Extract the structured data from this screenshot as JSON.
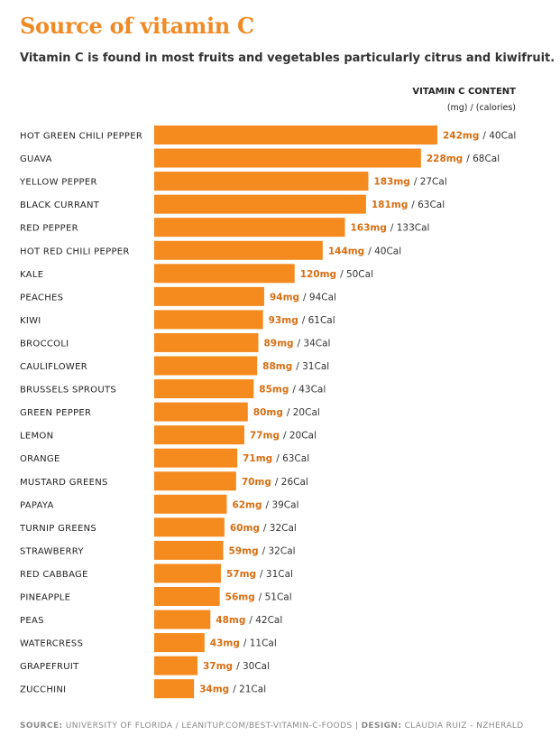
{
  "title": "Source of vitamin C",
  "subtitle": "Vitamin C is found in most fruits and vegetables particularly citrus and kiwifruit.",
  "column_header": {
    "line1": "VITAMIN C CONTENT",
    "line2": "(mg) / (calories)"
  },
  "footer": {
    "source_label": "SOURCE:",
    "source_text": "UNIVERSITY OF FLORIDA  /  LEANITUP.COM/BEST-VITAMIN-C-FOODS",
    "separator": "|",
    "design_label": "DESIGN:",
    "design_text": "CLAUDIA RUIZ - NZHERALD"
  },
  "colors": {
    "bar": "#f58a1f",
    "title": "#f08a24",
    "mg_value": "#d86e12"
  },
  "chart_data": {
    "type": "bar",
    "orientation": "horizontal",
    "categories": [
      "HOT GREEN CHILI PEPPER",
      "GUAVA",
      "YELLOW PEPPER",
      "BLACK CURRANT",
      "RED PEPPER",
      "HOT RED CHILI PEPPER",
      "KALE",
      "PEACHES",
      "KIWI",
      "BROCCOLI",
      "CAULIFLOWER",
      "BRUSSELS SPROUTS",
      "GREEN PEPPER",
      "LEMON",
      "ORANGE",
      "MUSTARD GREENS",
      "PAPAYA",
      "TURNIP GREENS",
      "STRAWBERRY",
      "RED CABBAGE",
      "PINEAPPLE",
      "PEAS",
      "WATERCRESS",
      "GRAPEFRUIT",
      "ZUCCHINI"
    ],
    "values": [
      242,
      228,
      183,
      181,
      163,
      144,
      120,
      94,
      93,
      89,
      88,
      85,
      80,
      77,
      71,
      70,
      62,
      60,
      59,
      57,
      56,
      48,
      43,
      37,
      34
    ],
    "mg_labels": [
      "242mg",
      "228mg",
      "183mg",
      "181mg",
      "163mg",
      "144mg",
      "120mg",
      "94mg",
      "93mg",
      "89mg",
      "88mg",
      "85mg",
      "80mg",
      "77mg",
      "71mg",
      "70mg",
      "62mg",
      "60mg",
      "59mg",
      "57mg",
      "56mg",
      "48mg",
      "43mg",
      "37mg",
      "34mg"
    ],
    "cal_labels": [
      "/ 40Cal",
      "/ 68Cal",
      "/ 27Cal",
      "/ 63Cal",
      "/ 133Cal",
      "/ 40Cal",
      "/ 50Cal",
      "/ 94Cal",
      "/ 61Cal",
      "/ 34Cal",
      "/ 31Cal",
      "/ 43Cal",
      "/ 20Cal",
      "/ 20Cal",
      "/ 63Cal",
      "/ 26Cal",
      "/ 39Cal",
      "/ 32Cal",
      "/ 32Cal",
      "/ 31Cal",
      "/ 51Cal",
      "/ 42Cal",
      "/ 11Cal",
      "/ 30Cal",
      "/ 21Cal"
    ],
    "xlim": [
      0,
      242
    ],
    "grid": false,
    "legend": "none"
  }
}
